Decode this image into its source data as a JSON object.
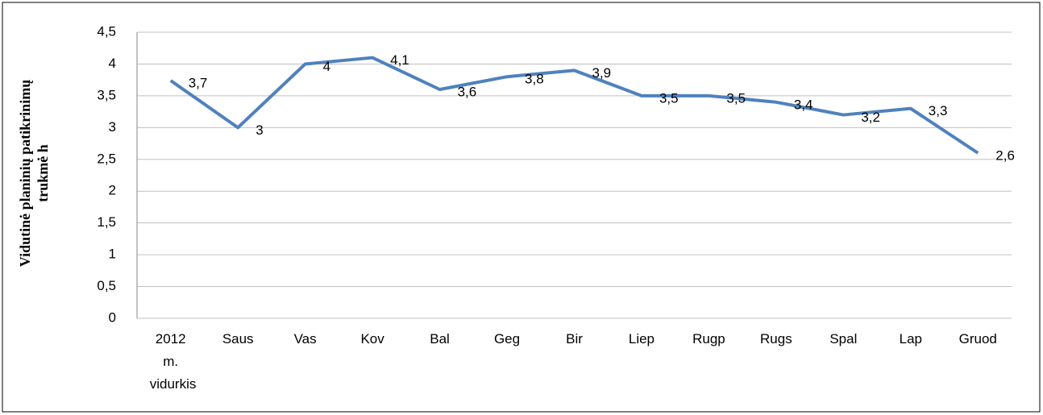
{
  "chart_data": {
    "type": "line",
    "y_label": "Vidutinė planinių patikrinimų trukmė h",
    "categories": [
      "2012 m. vidurkis",
      "Saus",
      "Vas",
      "Kov",
      "Bal",
      "Geg",
      "Bir",
      "Liep",
      "Rugp",
      "Rugs",
      "Spal",
      "Lap",
      "Gruod"
    ],
    "series": [
      {
        "name": "Trukmė",
        "color": "#4f81bd",
        "values": [
          3.74,
          3,
          4,
          4.1,
          3.6,
          3.8,
          3.9,
          3.5,
          3.5,
          3.4,
          3.2,
          3.3,
          2.6
        ],
        "value_labels": [
          "3,7",
          "3",
          "4",
          "4,1",
          "3,6",
          "3,8",
          "3,9",
          "3,5",
          "3,5",
          "3,4",
          "3,2",
          "3,3",
          "2,6"
        ]
      }
    ],
    "ylim": [
      0,
      4.5
    ],
    "yticks": [
      0,
      {
        "value": 0.5,
        "label": "0,5"
      },
      1,
      {
        "value": 1.5,
        "label": "1,5"
      },
      2,
      {
        "value": 2.5,
        "label": "2,5"
      },
      3,
      {
        "value": 3.5,
        "label": "3,5"
      },
      4,
      {
        "value": 4.5,
        "label": "4,5"
      }
    ],
    "grid": true
  }
}
